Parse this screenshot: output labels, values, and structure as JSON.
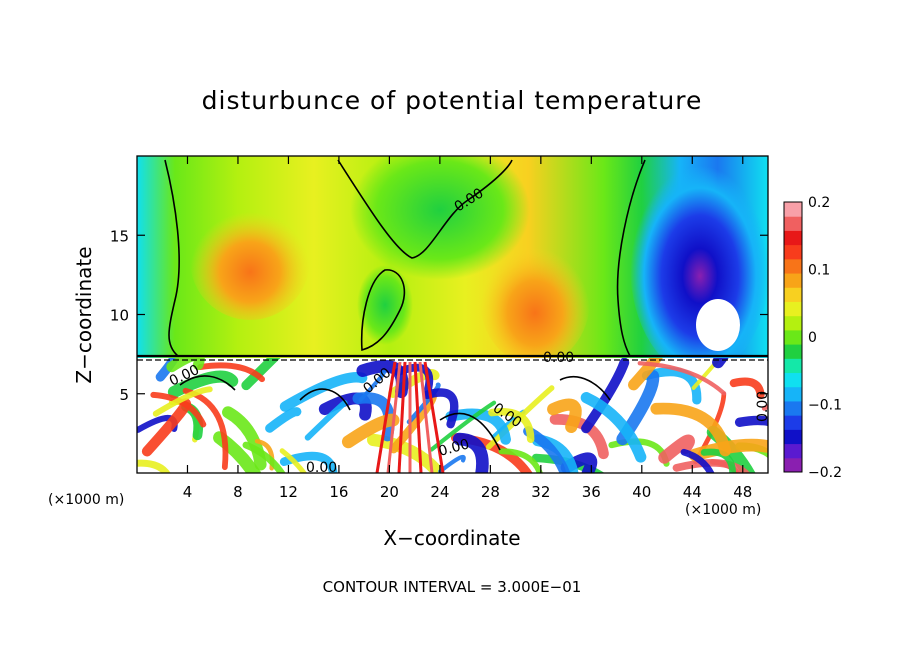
{
  "chart_data": {
    "type": "heatmap",
    "title": "disturbunce of potential temperature",
    "xlabel": "X−coordinate",
    "ylabel": "Z−coordinate",
    "x_unit": "(×1000 m)",
    "z_unit": "(×1000 m)",
    "xlim": [
      0,
      50
    ],
    "ylim": [
      0,
      20
    ],
    "x_ticks": [
      4,
      8,
      12,
      16,
      20,
      24,
      28,
      32,
      36,
      40,
      44,
      48
    ],
    "y_ticks": [
      5,
      10,
      15
    ],
    "colorbar": {
      "range": [
        -0.2,
        0.2
      ],
      "ticks": [
        0.2,
        0.1,
        0,
        -0.1,
        -0.2
      ],
      "tick_labels": [
        "0.2",
        "0.1",
        "0",
        "−0.1",
        "−0.2"
      ],
      "colors": [
        "#8a1fb0",
        "#5a1ad0",
        "#1010c8",
        "#1c3ce8",
        "#1a78f0",
        "#16b4f8",
        "#10e0f0",
        "#14e8a8",
        "#20d040",
        "#6ae818",
        "#b4f010",
        "#e8f020",
        "#f8d020",
        "#f8a418",
        "#f87418",
        "#f83c1c",
        "#e81818",
        "#f06060",
        "#f8a0a8"
      ]
    },
    "contour_labels": [
      "0.00",
      "0.00",
      "0.00",
      "0.00",
      "0.00",
      "0.00",
      "0.00",
      "0.00"
    ],
    "contour_interval": "CONTOUR INTERVAL = 3.000E−01"
  }
}
